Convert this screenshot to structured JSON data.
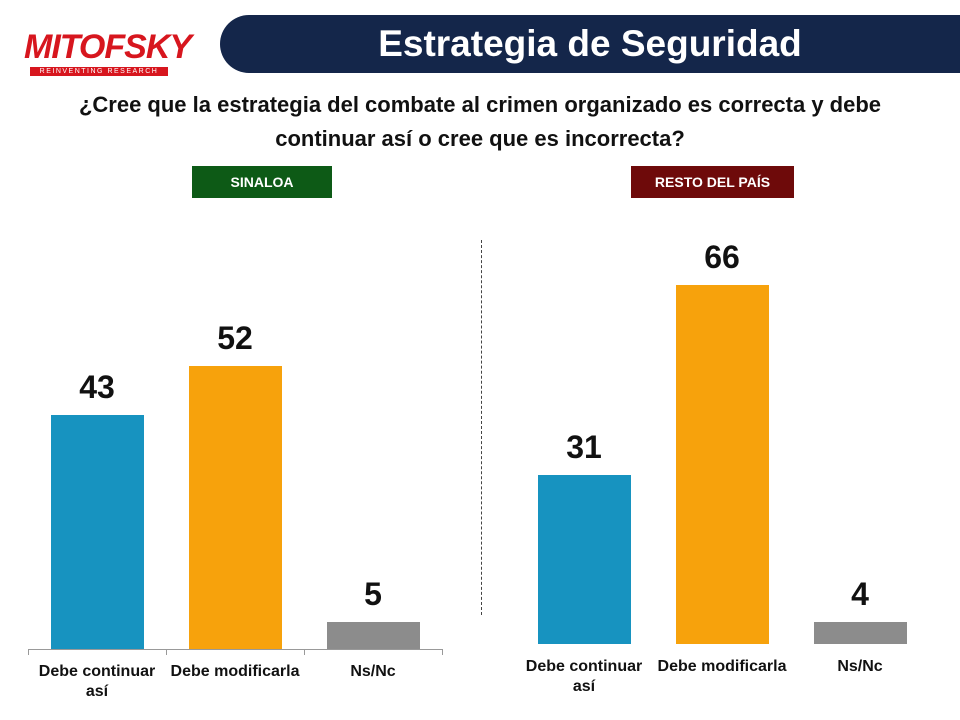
{
  "header": {
    "logo": "MITOFSKY",
    "tagline": "REINVENTING RESEARCH",
    "title": "Estrategia de Seguridad",
    "question": "¿Cree que la estrategia del combate al crimen organizado es correcta y debe continuar así o cree que es incorrecta?"
  },
  "chart_data": [
    {
      "type": "bar",
      "title": "SINALOA",
      "title_color": "#0d5a16",
      "categories": [
        "Debe continuar así",
        "Debe modificarla",
        "Ns/Nc"
      ],
      "values": [
        43,
        52,
        5
      ],
      "colors": [
        "#1793c0",
        "#f7a20c",
        "#8c8c8c"
      ],
      "axis_line": true
    },
    {
      "type": "bar",
      "title": "RESTO DEL PAÍS",
      "title_color": "#6e0a0a",
      "categories": [
        "Debe continuar así",
        "Debe modificarla",
        "Ns/Nc"
      ],
      "values": [
        31,
        66,
        4
      ],
      "colors": [
        "#1793c0",
        "#f7a20c",
        "#8c8c8c"
      ],
      "axis_line": false
    }
  ]
}
